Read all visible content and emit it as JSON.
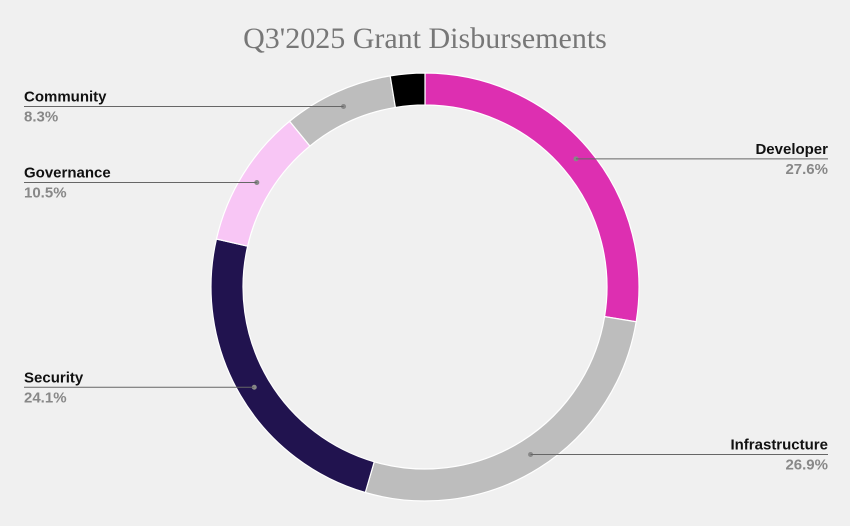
{
  "chart_data": {
    "type": "pie",
    "title": "Q3'2025 Grant Disbursements",
    "donut": true,
    "slices": [
      {
        "label": "Developer",
        "value": 27.6,
        "value_label": "27.6%",
        "color": "#dd2fb1",
        "label_side": "right"
      },
      {
        "label": "Infrastructure",
        "value": 26.9,
        "value_label": "26.9%",
        "color": "#bdbdbd",
        "label_side": "right"
      },
      {
        "label": "Security",
        "value": 24.1,
        "value_label": "24.1%",
        "color": "#21134f",
        "label_side": "left"
      },
      {
        "label": "Governance",
        "value": 10.5,
        "value_label": "10.5%",
        "color": "#f8c6f5",
        "label_side": "left"
      },
      {
        "label": "Community",
        "value": 8.3,
        "value_label": "8.3%",
        "color": "#bdbdbd",
        "label_side": "left"
      },
      {
        "label": "",
        "value": 2.6,
        "value_label": "",
        "color": "#000000",
        "label_side": "none"
      }
    ],
    "leader_line_color": "#666666",
    "background": "#f0f0f0"
  }
}
